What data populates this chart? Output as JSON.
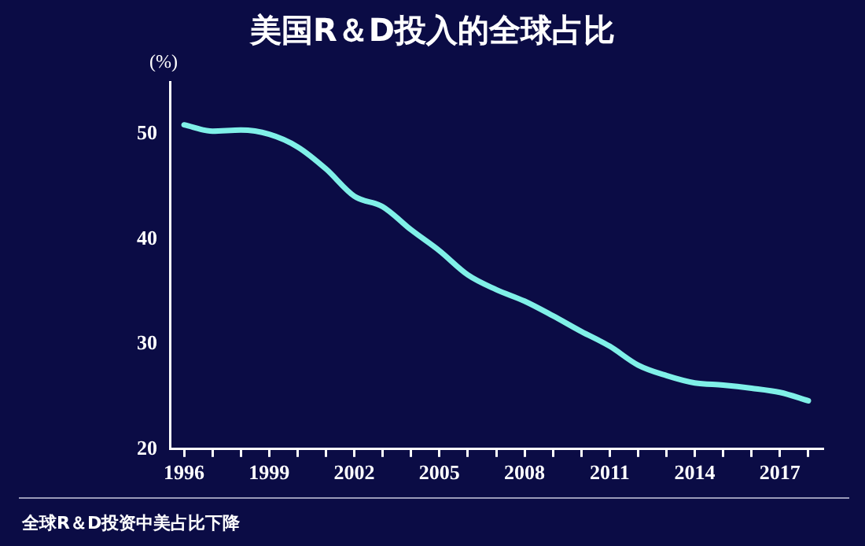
{
  "chart_data": {
    "type": "line",
    "title": "美国R＆D投入的全球占比",
    "ylabel": "(%)",
    "annotations": [
      "全球R＆D投资中美占比下降"
    ],
    "x": [
      1996,
      1997,
      1998,
      1999,
      2000,
      2001,
      2002,
      2003,
      2004,
      2005,
      2006,
      2007,
      2008,
      2009,
      2010,
      2011,
      2012,
      2013,
      2014,
      2015,
      2016,
      2017,
      2018
    ],
    "series": [
      {
        "color": "#80f0e8",
        "values": [
          50.9,
          50.3,
          50.4,
          50.0,
          48.8,
          46.7,
          44.1,
          43.1,
          40.9,
          38.9,
          36.6,
          35.2,
          34.1,
          32.7,
          31.2,
          29.8,
          28.0,
          27.0,
          26.3,
          26.1,
          25.8,
          25.4,
          24.6
        ]
      }
    ],
    "xlim": [
      1995.5,
      2018.5
    ],
    "xticks": [
      1996,
      {
        "value": 1997,
        "label": null
      },
      {
        "value": 1998,
        "label": null
      },
      1999,
      {
        "value": 2000,
        "label": null
      },
      {
        "value": 2001,
        "label": null
      },
      2002,
      {
        "value": 2003,
        "label": null
      },
      {
        "value": 2004,
        "label": null
      },
      2005,
      {
        "value": 2006,
        "label": null
      },
      {
        "value": 2007,
        "label": null
      },
      2008,
      {
        "value": 2009,
        "label": null
      },
      {
        "value": 2010,
        "label": null
      },
      2011,
      {
        "value": 2012,
        "label": null
      },
      {
        "value": 2013,
        "label": null
      },
      2014,
      {
        "value": 2015,
        "label": null
      },
      {
        "value": 2016,
        "label": null
      },
      2017,
      {
        "value": 2018,
        "label": null
      }
    ],
    "ylim": [
      20,
      55
    ],
    "yticks": [
      20,
      30,
      40,
      50
    ],
    "grid": false,
    "legend": false,
    "marker": "none",
    "line_style": "solid"
  }
}
